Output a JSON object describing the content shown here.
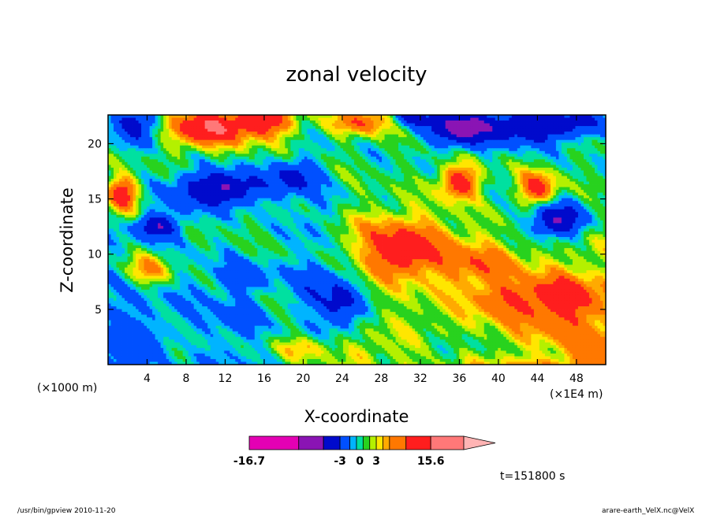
{
  "chart_data": {
    "type": "heatmap",
    "title": "zonal velocity",
    "xlabel": "X-coordinate",
    "ylabel": "Z-coordinate",
    "x_unit_left": "(×1000 m)",
    "x_unit_right": "(×1E4 m)",
    "x_ticks": [
      4,
      8,
      12,
      16,
      20,
      24,
      28,
      32,
      36,
      40,
      44,
      48
    ],
    "y_ticks": [
      5,
      10,
      15,
      20
    ],
    "xlim": [
      0,
      51
    ],
    "ylim": [
      0,
      22.6
    ],
    "time_label": "t=151800 s",
    "colorbar": {
      "labels": [
        {
          "text": "-16.7",
          "index": 0
        },
        {
          "text": "-3",
          "index": 3
        },
        {
          "text": "0",
          "index": 5.5
        },
        {
          "text": "3",
          "index": 8
        },
        {
          "text": "15.6",
          "index": 12
        }
      ],
      "colors": [
        "#e400b4",
        "#8a14b4",
        "#000acc",
        "#0050ff",
        "#00b4ff",
        "#00e0a0",
        "#28d21e",
        "#b4f000",
        "#ffe600",
        "#ffaa00",
        "#ff7800",
        "#ff1e1e",
        "#ff7878",
        "#ffb4b4"
      ],
      "weights": [
        3,
        1.5,
        1,
        0.6,
        0.4,
        0.4,
        0.4,
        0.4,
        0.4,
        0.4,
        1,
        1.5,
        2,
        1.6
      ]
    },
    "field_levels": [
      -16.7,
      -10,
      -6,
      -3,
      -2,
      -1,
      0,
      1,
      2,
      3,
      5,
      8,
      11,
      15.6
    ]
  },
  "footer": {
    "left": "/usr/bin/gpview   2010-11-20",
    "right": "arare-earth_VelX.nc@VelX"
  }
}
